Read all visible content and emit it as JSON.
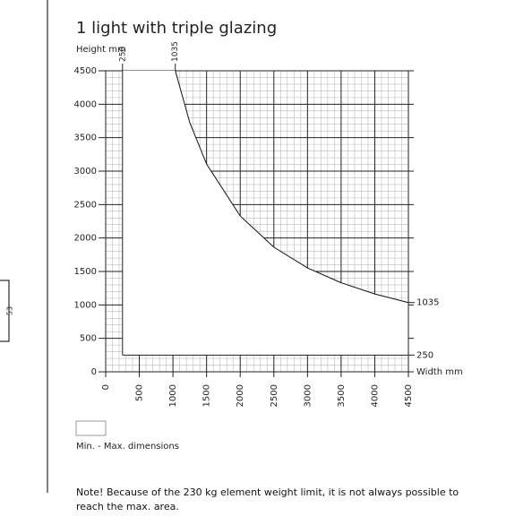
{
  "chart_data": {
    "type": "area",
    "title": "1 light with triple glazing",
    "y_label": "Height mm",
    "x_label": "Width mm",
    "xlim": [
      0,
      4500
    ],
    "ylim": [
      0,
      4500
    ],
    "xticks": [
      0,
      500,
      1000,
      1500,
      2000,
      2500,
      3000,
      3500,
      4000,
      4500
    ],
    "yticks": [
      0,
      500,
      1000,
      1500,
      2000,
      2500,
      3000,
      3500,
      4000,
      4500
    ],
    "grid": true,
    "limits": {
      "xmin": 250,
      "xmax": 4500,
      "ymin": 250,
      "ymax": 4500
    },
    "x_marks": [
      250,
      1035
    ],
    "y_marks": [
      1035,
      250
    ],
    "curve": {
      "x": [
        1035,
        1250,
        1500,
        2000,
        2500,
        3000,
        3500,
        4000,
        4500
      ],
      "y": [
        4500,
        3726,
        3105,
        2329,
        1863,
        1553,
        1331,
        1164,
        1035
      ]
    },
    "legend": "Min. - Max. dimensions",
    "note": "Note! Because of the 230 kg element weight limit, it is not always possible to reach the max. area.",
    "side_label": "53"
  }
}
